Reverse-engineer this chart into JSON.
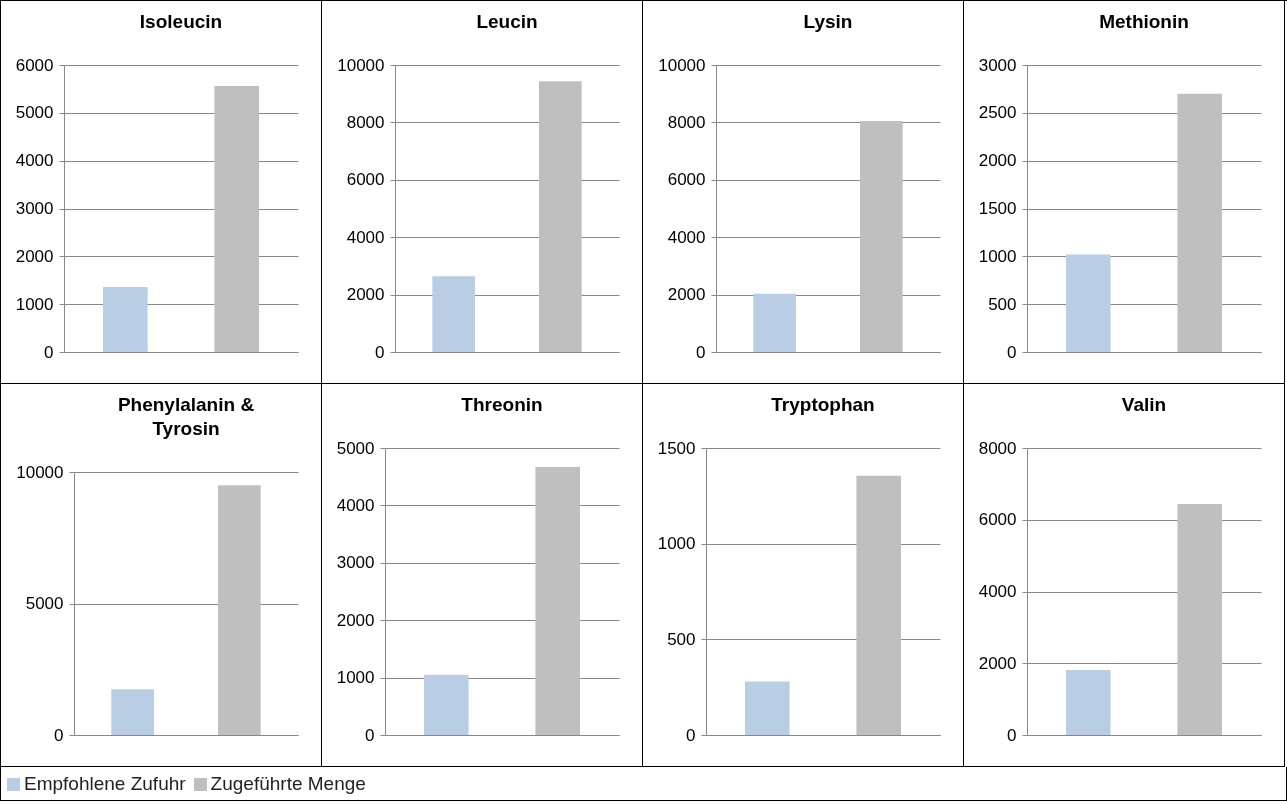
{
  "chart_data": [
    {
      "type": "bar",
      "title": "Isoleucin",
      "categories": [
        null,
        null
      ],
      "ylim": [
        0,
        6000
      ],
      "yticks": [
        0,
        1000,
        2000,
        3000,
        4000,
        5000,
        6000
      ],
      "grid": "y",
      "tick_labels": "y",
      "legend": "bottom left",
      "series": [
        {
          "name": "Empfohlene Zufuhr",
          "color": "#b9cde5",
          "values": [
            1360,
            null
          ]
        },
        {
          "name": "Zugeführte Menge",
          "color": "#bfbfbf",
          "values": [
            null,
            5560
          ]
        }
      ]
    },
    {
      "type": "bar",
      "title": "Leucin",
      "categories": [
        null,
        null
      ],
      "ylim": [
        0,
        10000
      ],
      "yticks": [
        0,
        2000,
        4000,
        6000,
        8000,
        10000
      ],
      "grid": "y",
      "tick_labels": "y",
      "series": [
        {
          "color": "#b9cde5",
          "values": [
            2640,
            null
          ]
        },
        {
          "color": "#bfbfbf",
          "values": [
            null,
            9430
          ]
        }
      ]
    },
    {
      "type": "bar",
      "title": "Lysin",
      "categories": [
        null,
        null
      ],
      "ylim": [
        0,
        10000
      ],
      "yticks": [
        0,
        2000,
        4000,
        6000,
        8000,
        10000
      ],
      "grid": "y",
      "tick_labels": "y",
      "series": [
        {
          "color": "#b9cde5",
          "values": [
            2030,
            null
          ]
        },
        {
          "color": "#bfbfbf",
          "values": [
            null,
            8050
          ]
        }
      ]
    },
    {
      "type": "bar",
      "title": "Methionin",
      "categories": [
        null,
        null
      ],
      "ylim": [
        0,
        3000
      ],
      "yticks": [
        0,
        500,
        1000,
        1500,
        2000,
        2500,
        3000
      ],
      "grid": "y",
      "tick_labels": "y",
      "series": [
        {
          "color": "#b9cde5",
          "values": [
            1020,
            null
          ]
        },
        {
          "color": "#bfbfbf",
          "values": [
            null,
            2700
          ]
        }
      ]
    },
    {
      "type": "bar",
      "title": "Phenylalanin & Tyrosin",
      "categories": [
        null,
        null
      ],
      "ylim": [
        0,
        10000
      ],
      "yticks": [
        0,
        5000,
        10000
      ],
      "grid": "y",
      "tick_labels": "y",
      "series": [
        {
          "color": "#b9cde5",
          "values": [
            1740,
            null
          ]
        },
        {
          "color": "#bfbfbf",
          "values": [
            null,
            9500
          ]
        }
      ]
    },
    {
      "type": "bar",
      "title": "Threonin",
      "categories": [
        null,
        null
      ],
      "ylim": [
        0,
        5000
      ],
      "yticks": [
        0,
        1000,
        2000,
        3000,
        4000,
        5000
      ],
      "grid": "y",
      "tick_labels": "y",
      "series": [
        {
          "color": "#b9cde5",
          "values": [
            1050,
            null
          ]
        },
        {
          "color": "#bfbfbf",
          "values": [
            null,
            4670
          ]
        }
      ]
    },
    {
      "type": "bar",
      "title": "Tryptophan",
      "categories": [
        null,
        null
      ],
      "ylim": [
        0,
        1500
      ],
      "yticks": [
        0,
        500,
        1000,
        1500
      ],
      "grid": "y",
      "tick_labels": "y",
      "series": [
        {
          "color": "#b9cde5",
          "values": [
            280,
            null
          ]
        },
        {
          "color": "#bfbfbf",
          "values": [
            null,
            1355
          ]
        }
      ]
    },
    {
      "type": "bar",
      "title": "Valin",
      "categories": [
        null,
        null
      ],
      "ylim": [
        0,
        8000
      ],
      "yticks": [
        0,
        2000,
        4000,
        6000,
        8000
      ],
      "grid": "y",
      "tick_labels": "y",
      "series": [
        {
          "color": "#b9cde5",
          "values": [
            1810,
            null
          ]
        },
        {
          "color": "#bfbfbf",
          "values": [
            null,
            6440
          ]
        }
      ]
    }
  ]
}
